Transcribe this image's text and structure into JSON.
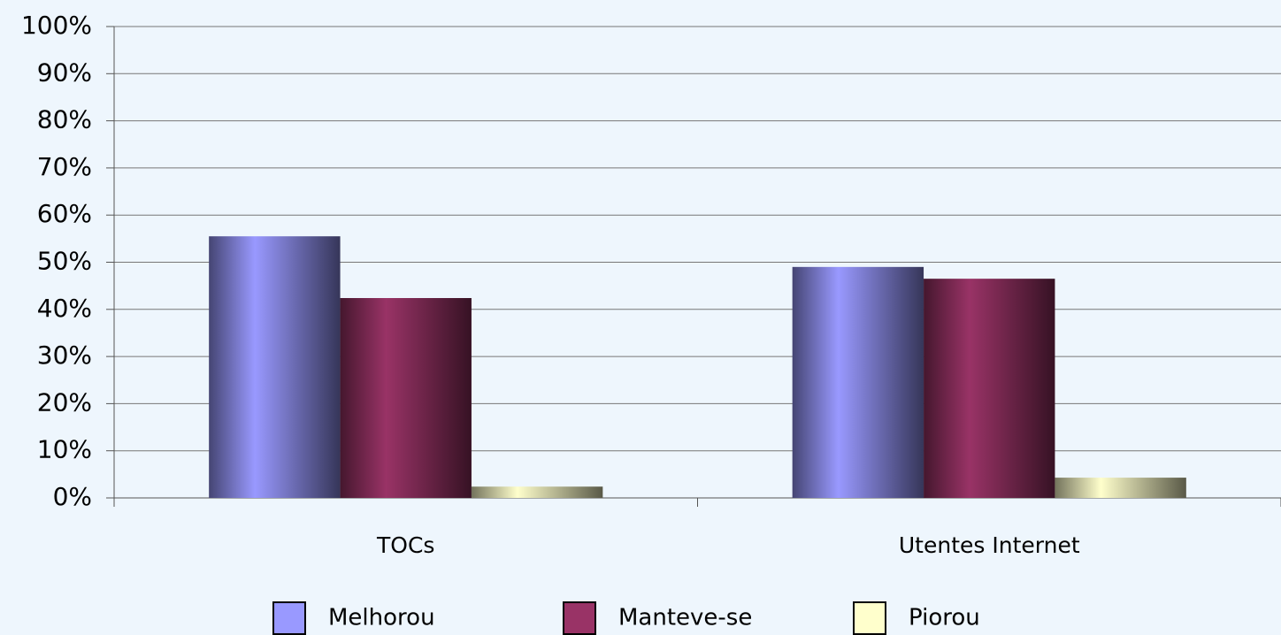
{
  "chart_data": {
    "type": "bar",
    "categories": [
      "TOCs",
      "Utentes Internet"
    ],
    "series": [
      {
        "name": "Melhorou",
        "color": "#9999ff",
        "values": [
          55.5,
          49
        ]
      },
      {
        "name": "Manteve-se",
        "color": "#993366",
        "values": [
          42.4,
          46.5
        ]
      },
      {
        "name": "Piorou",
        "color": "#ffffcc",
        "values": [
          2.4,
          4.3
        ]
      }
    ],
    "ylim": [
      0,
      100
    ],
    "yticks": [
      {
        "value": 0,
        "label": "0%"
      },
      {
        "value": 10,
        "label": "10%"
      },
      {
        "value": 20,
        "label": "20%"
      },
      {
        "value": 30,
        "label": "30%"
      },
      {
        "value": 40,
        "label": "40%"
      },
      {
        "value": 50,
        "label": "50%"
      },
      {
        "value": 60,
        "label": "60%"
      },
      {
        "value": 70,
        "label": "70%"
      },
      {
        "value": 80,
        "label": "80%"
      },
      {
        "value": 90,
        "label": "90%"
      },
      {
        "value": 100,
        "label": "100%"
      }
    ],
    "grid": true,
    "legend": "bottom"
  }
}
